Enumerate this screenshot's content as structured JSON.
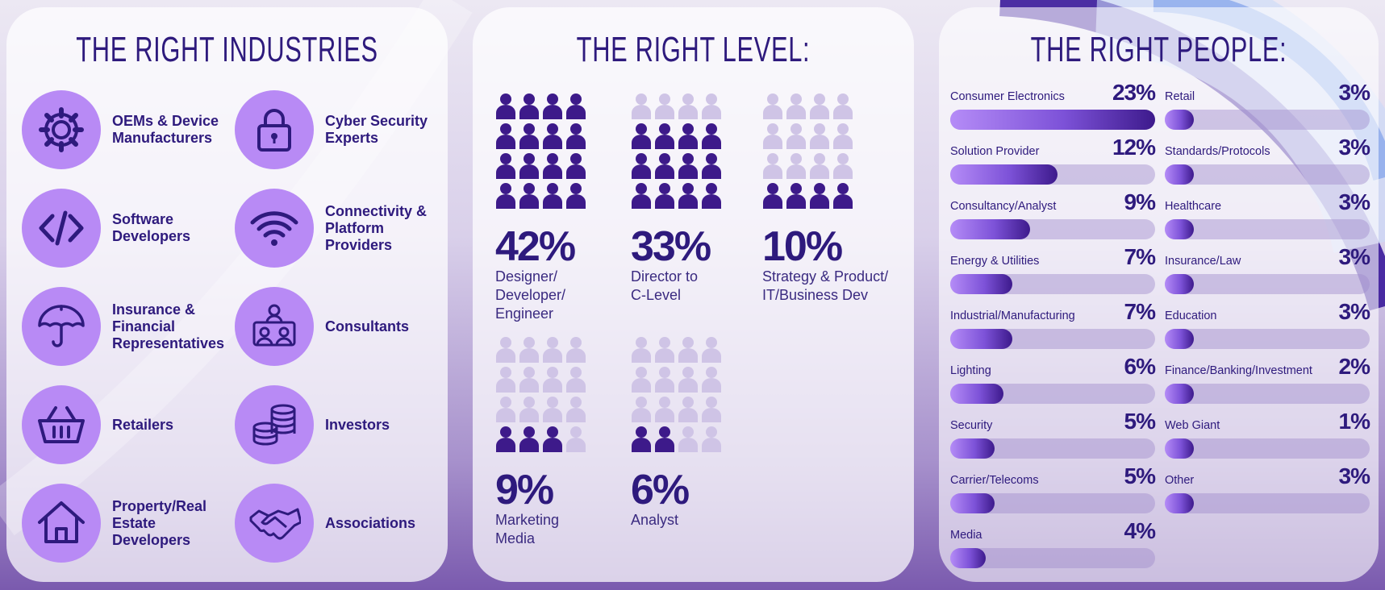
{
  "colors": {
    "navy": "#2e1a7d",
    "lavender": "#b88af5",
    "person_dark": "#3d1a8a",
    "person_light": "#cfc4e6"
  },
  "industries": {
    "title": "THE RIGHT INDUSTRIES",
    "items": [
      {
        "label": "OEMs & Device\nManufacturers",
        "icon": "gear-icon"
      },
      {
        "label": "Cyber Security\nExperts",
        "icon": "lock-icon"
      },
      {
        "label": "Software\nDevelopers",
        "icon": "code-icon"
      },
      {
        "label": "Connectivity &\nPlatform\nProviders",
        "icon": "wifi-icon"
      },
      {
        "label": "Insurance &\nFinancial\nRepresentatives",
        "icon": "umbrella-icon"
      },
      {
        "label": "Consultants",
        "icon": "meeting-icon"
      },
      {
        "label": "Retailers",
        "icon": "basket-icon"
      },
      {
        "label": "Investors",
        "icon": "coins-icon"
      },
      {
        "label": "Property/Real\nEstate\nDevelopers",
        "icon": "house-icon"
      },
      {
        "label": "Associations",
        "icon": "handshake-icon"
      }
    ]
  },
  "chart_data": [
    {
      "type": "bar",
      "title": "THE RIGHT LEVEL:",
      "categories": [
        "Designer/\nDeveloper/\nEngineer",
        "Director to\nC-Level",
        "Strategy & Product/\nIT/Business Dev",
        "Marketing\nMedia",
        "Analyst"
      ],
      "values": [
        42,
        33,
        10,
        9,
        6
      ],
      "value_labels": [
        "42%",
        "33%",
        "10%",
        "9%",
        "6%"
      ],
      "icons_filled_of_16": [
        16,
        12,
        4,
        3,
        2
      ]
    },
    {
      "type": "bar",
      "title": "THE RIGHT PEOPLE:",
      "categories": [
        "Consumer Electronics",
        "Solution Provider",
        "Consultancy/Analyst",
        "Energy & Utilities",
        "Industrial/Manufacturing",
        "Lighting",
        "Security",
        "Carrier/Telecoms",
        "Media",
        "Retail",
        "Standards/Protocols",
        "Healthcare",
        "Insurance/Law",
        "Education",
        "Finance/Banking/Investment",
        "Web Giant",
        "Other"
      ],
      "values": [
        23,
        12,
        9,
        7,
        7,
        6,
        5,
        5,
        4,
        3,
        3,
        3,
        3,
        3,
        2,
        1,
        3
      ],
      "value_labels": [
        "23%",
        "12%",
        "9%",
        "7%",
        "7%",
        "6%",
        "5%",
        "5%",
        "4%",
        "3%",
        "3%",
        "3%",
        "3%",
        "3%",
        "2%",
        "1%",
        "3%"
      ],
      "max": 23
    }
  ]
}
